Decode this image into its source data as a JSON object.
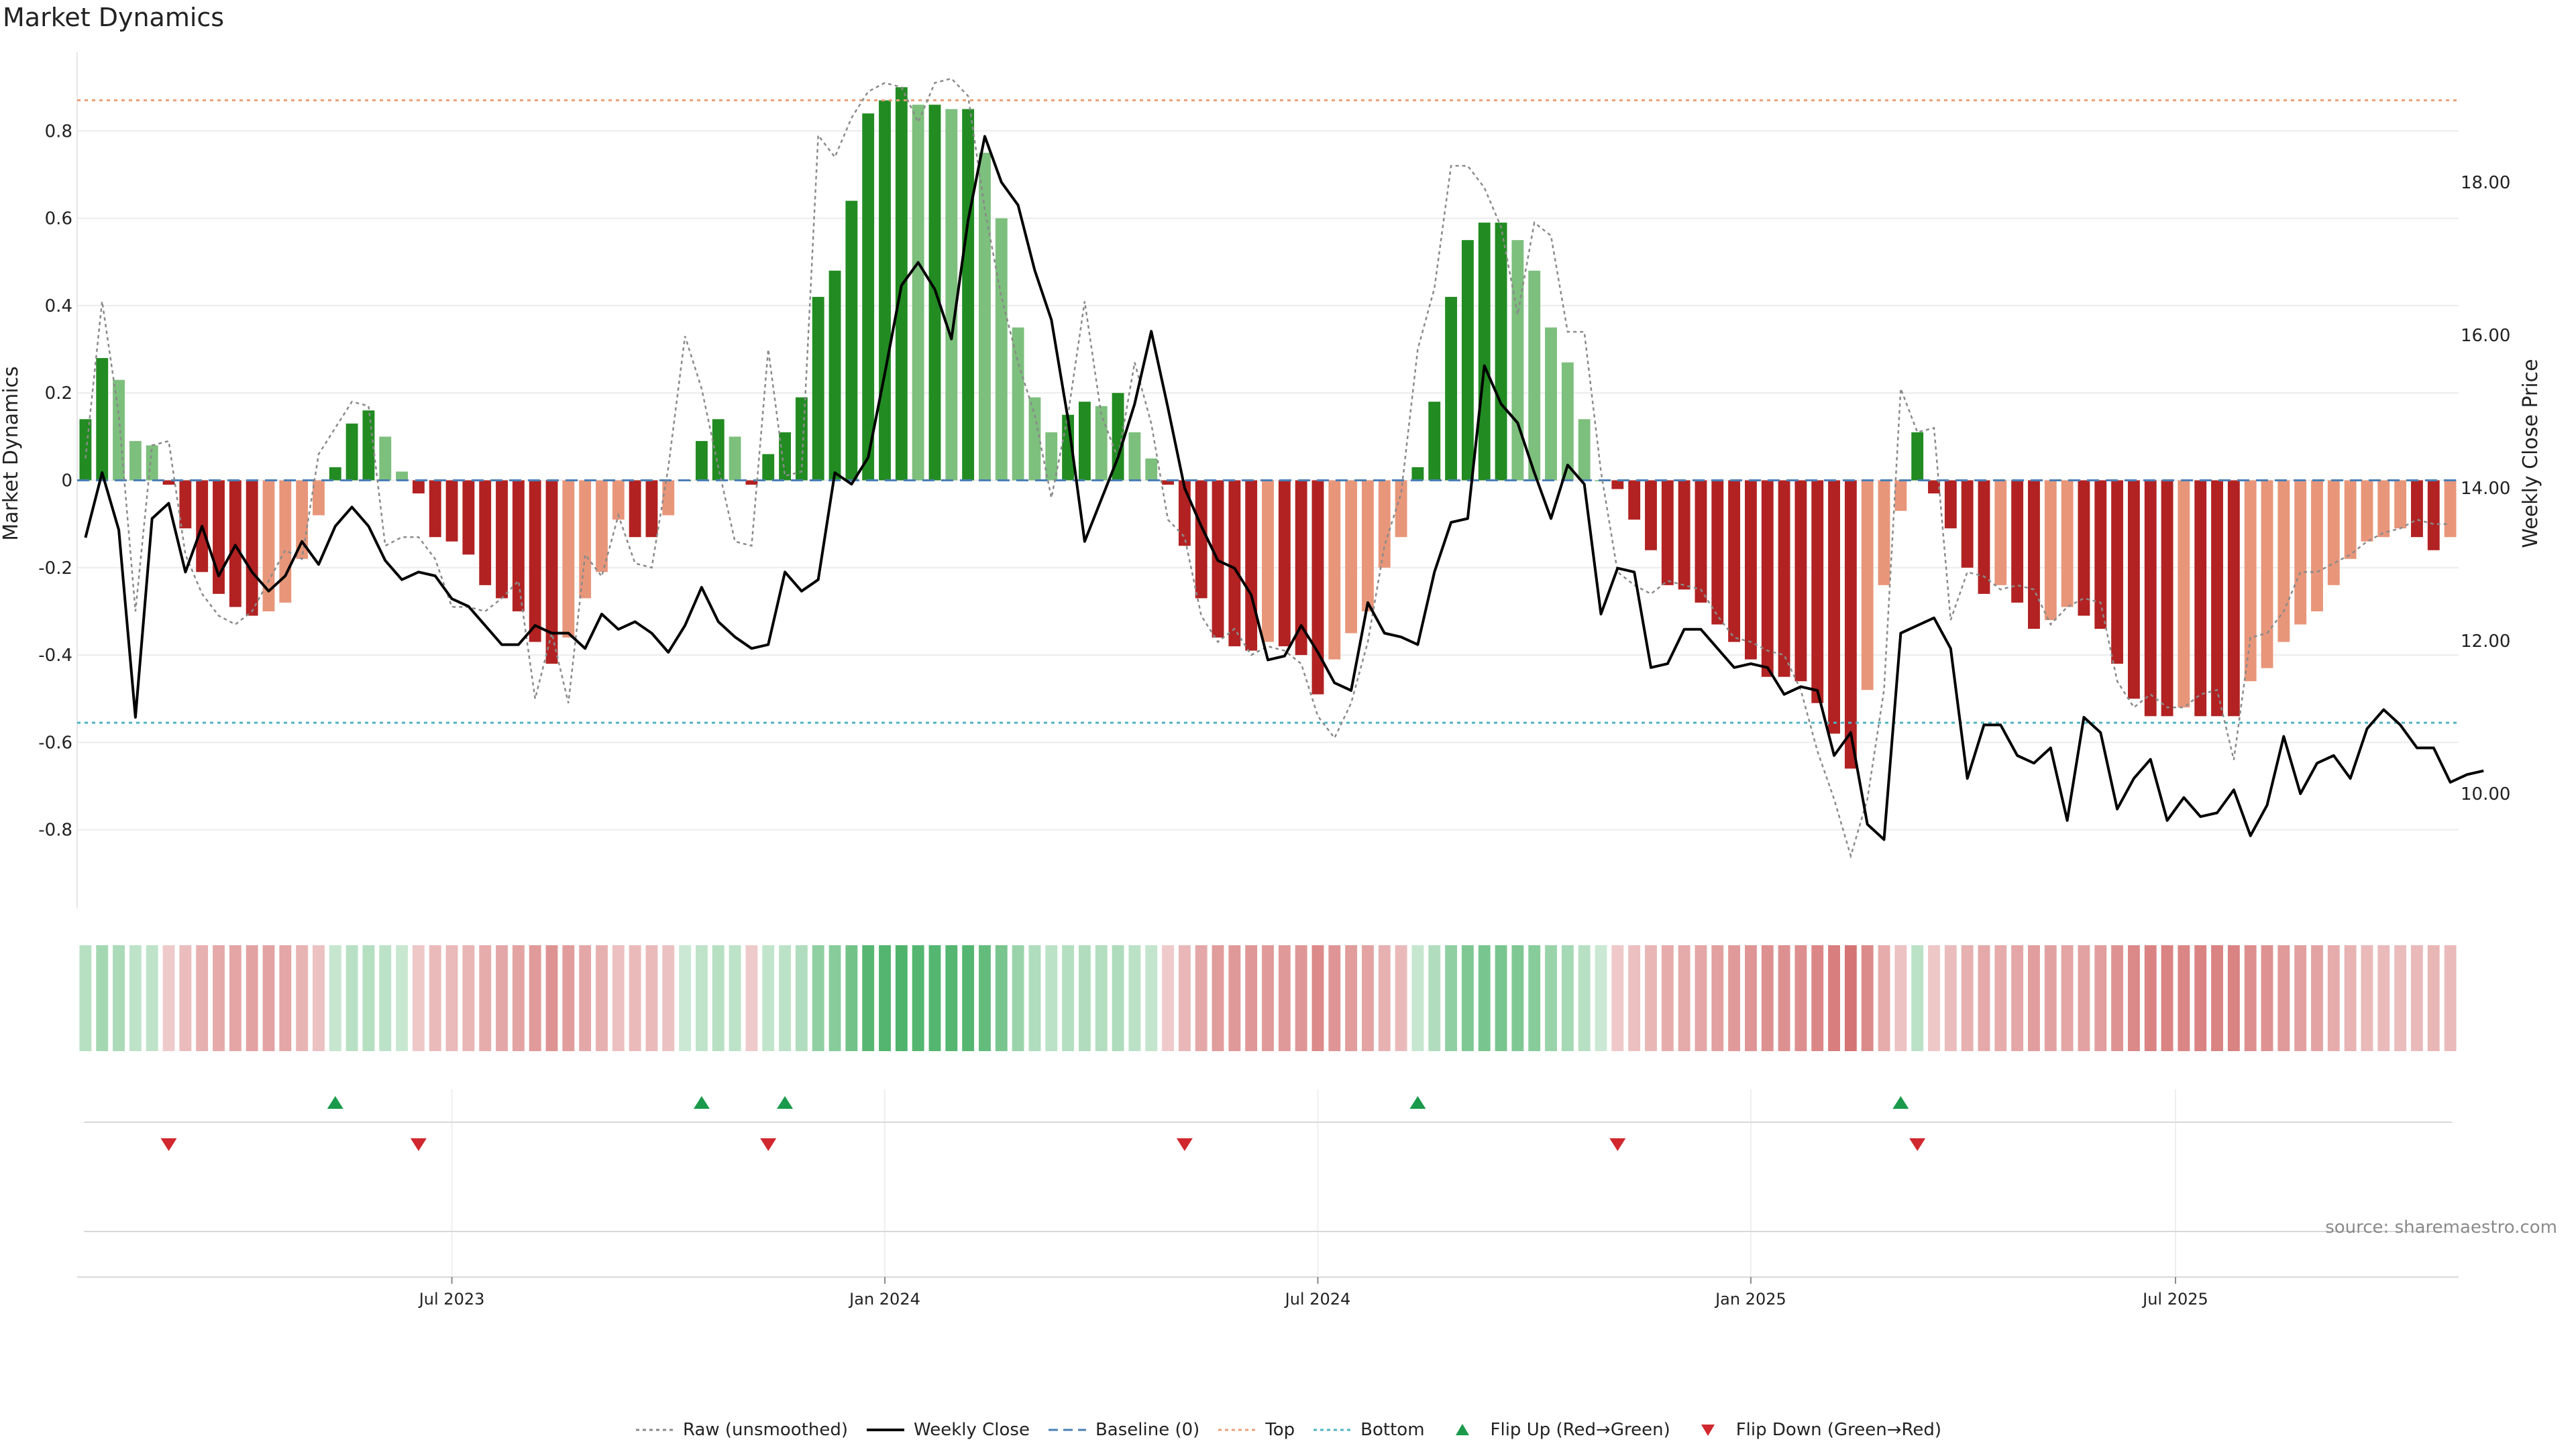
{
  "title": "Market Dynamics",
  "source": "source: sharemaestro.com",
  "legend": [
    {
      "key": "raw",
      "label": "Raw (unsmoothed)",
      "color": "#888888",
      "style": "dotted-line"
    },
    {
      "key": "close",
      "label": "Weekly Close",
      "color": "#000000",
      "style": "solid-line"
    },
    {
      "key": "baseline",
      "label": "Baseline (0)",
      "color": "#4a7fb5",
      "style": "dashed-line"
    },
    {
      "key": "top",
      "label": "Top",
      "color": "#e8a07a",
      "style": "dotted-line"
    },
    {
      "key": "bottom",
      "label": "Bottom",
      "color": "#4fb3c4",
      "style": "dotted-line"
    },
    {
      "key": "flip_up",
      "label": "Flip Up (Red→Green)",
      "color": "#1a9a4a",
      "style": "triangle-up"
    },
    {
      "key": "flip_down",
      "label": "Flip Down (Green→Red)",
      "color": "#d0282e",
      "style": "triangle-down"
    }
  ],
  "chart_data": {
    "type": "bar",
    "ylabel": "Market Dynamics",
    "ylabel_right": "Weekly Close Price",
    "ylim": [
      -0.98,
      0.98
    ],
    "ylim_right": [
      8.5,
      19.7
    ],
    "yticks": [
      -0.8,
      -0.6,
      -0.4,
      -0.2,
      0,
      0.2,
      0.4,
      0.6,
      0.8
    ],
    "yticks_right": [
      "10.00",
      "12.00",
      "14.00",
      "16.00",
      "18.00"
    ],
    "x_tick_labels": [
      "Jul 2023",
      "Jan 2024",
      "Jul 2024",
      "Jan 2025",
      "Jul 2025"
    ],
    "x_tick_index": [
      22,
      48,
      74,
      100,
      125.5
    ],
    "x_range": [
      -0.5,
      142.5
    ],
    "top_level": 0.87,
    "bottom_level": -0.555,
    "baseline": 0,
    "grid": true,
    "legend_position": "bottom",
    "bar_colors": {
      "strong_up": "#228b22",
      "weak_up": "#7dbf7d",
      "strong_down": "#b22222",
      "weak_down": "#e8967a"
    },
    "heat_colors": {
      "up": [
        34,
        160,
        70
      ],
      "down": [
        190,
        40,
        40
      ]
    },
    "series": [
      {
        "name": "Market Dynamics",
        "values": [
          0.14,
          0.28,
          0.23,
          0.09,
          0.08,
          -0.01,
          -0.11,
          -0.21,
          -0.26,
          -0.29,
          -0.31,
          -0.3,
          -0.28,
          -0.18,
          -0.08,
          0.03,
          0.13,
          0.16,
          0.1,
          0.02,
          -0.03,
          -0.13,
          -0.14,
          -0.17,
          -0.24,
          -0.27,
          -0.3,
          -0.37,
          -0.42,
          -0.36,
          -0.27,
          -0.21,
          -0.09,
          -0.13,
          -0.13,
          -0.08,
          0.0,
          0.09,
          0.14,
          0.1,
          -0.01,
          0.06,
          0.11,
          0.19,
          0.42,
          0.48,
          0.64,
          0.84,
          0.87,
          0.9,
          0.86,
          0.86,
          0.85,
          0.85,
          0.75,
          0.6,
          0.35,
          0.19,
          0.11,
          0.15,
          0.18,
          0.17,
          0.2,
          0.11,
          0.05,
          -0.01,
          -0.15,
          -0.27,
          -0.36,
          -0.38,
          -0.39,
          -0.37,
          -0.38,
          -0.4,
          -0.49,
          -0.41,
          -0.35,
          -0.3,
          -0.2,
          -0.13,
          0.03,
          0.18,
          0.42,
          0.55,
          0.59,
          0.59,
          0.55,
          0.48,
          0.35,
          0.27,
          0.14,
          0.0,
          -0.02,
          -0.09,
          -0.16,
          -0.24,
          -0.25,
          -0.28,
          -0.33,
          -0.37,
          -0.41,
          -0.45,
          -0.45,
          -0.46,
          -0.51,
          -0.58,
          -0.66,
          -0.48,
          -0.24,
          -0.07,
          0.11,
          -0.03,
          -0.11,
          -0.2,
          -0.26,
          -0.24,
          -0.28,
          -0.34,
          -0.32,
          -0.29,
          -0.31,
          -0.34,
          -0.42,
          -0.5,
          -0.54,
          -0.54,
          -0.52,
          -0.54,
          -0.54,
          -0.54,
          -0.46,
          -0.43,
          -0.37,
          -0.33,
          -0.3,
          -0.24,
          -0.18,
          -0.14,
          -0.13,
          -0.11,
          -0.13,
          -0.16,
          -0.13
        ]
      },
      {
        "name": "Raw (unsmoothed)",
        "values": [
          0.05,
          0.41,
          0.15,
          -0.3,
          0.08,
          0.09,
          -0.17,
          -0.26,
          -0.31,
          -0.33,
          -0.3,
          -0.23,
          -0.16,
          -0.18,
          0.06,
          0.12,
          0.18,
          0.17,
          -0.15,
          -0.13,
          -0.13,
          -0.18,
          -0.29,
          -0.29,
          -0.3,
          -0.27,
          -0.23,
          -0.5,
          -0.35,
          -0.51,
          -0.17,
          -0.22,
          -0.08,
          -0.19,
          -0.2,
          0.03,
          0.33,
          0.21,
          0.03,
          -0.14,
          -0.15,
          0.3,
          0.01,
          0.02,
          0.79,
          0.74,
          0.83,
          0.89,
          0.91,
          0.9,
          0.82,
          0.91,
          0.92,
          0.88,
          0.62,
          0.42,
          0.27,
          0.15,
          -0.04,
          0.15,
          0.41,
          0.15,
          0.05,
          0.27,
          0.13,
          -0.09,
          -0.13,
          -0.31,
          -0.37,
          -0.34,
          -0.4,
          -0.38,
          -0.39,
          -0.42,
          -0.54,
          -0.59,
          -0.51,
          -0.37,
          -0.15,
          -0.03,
          0.3,
          0.44,
          0.72,
          0.72,
          0.67,
          0.58,
          0.38,
          0.59,
          0.56,
          0.34,
          0.34,
          0.02,
          -0.21,
          -0.24,
          -0.26,
          -0.23,
          -0.24,
          -0.25,
          -0.31,
          -0.36,
          -0.37,
          -0.39,
          -0.4,
          -0.48,
          -0.62,
          -0.73,
          -0.86,
          -0.73,
          -0.48,
          0.21,
          0.11,
          0.12,
          -0.32,
          -0.21,
          -0.22,
          -0.25,
          -0.24,
          -0.25,
          -0.33,
          -0.29,
          -0.27,
          -0.28,
          -0.46,
          -0.52,
          -0.49,
          -0.52,
          -0.52,
          -0.49,
          -0.48,
          -0.64,
          -0.36,
          -0.35,
          -0.3,
          -0.21,
          -0.21,
          -0.19,
          -0.17,
          -0.14,
          -0.12,
          -0.11,
          -0.09,
          -0.1,
          -0.1
        ]
      },
      {
        "name": "Weekly Close",
        "values": [
          13.35,
          14.2,
          13.45,
          11.0,
          13.6,
          13.8,
          12.9,
          13.5,
          12.85,
          13.25,
          12.9,
          12.65,
          12.85,
          13.3,
          13.0,
          13.5,
          13.75,
          13.5,
          13.05,
          12.8,
          12.9,
          12.85,
          12.55,
          12.45,
          12.2,
          11.95,
          11.95,
          12.2,
          12.1,
          12.1,
          11.9,
          12.35,
          12.15,
          12.25,
          12.1,
          11.85,
          12.2,
          12.7,
          12.25,
          12.05,
          11.9,
          11.95,
          12.9,
          12.65,
          12.8,
          14.2,
          14.05,
          14.4,
          15.5,
          16.65,
          16.95,
          16.6,
          15.95,
          17.5,
          18.6,
          18.0,
          17.7,
          16.85,
          16.2,
          14.9,
          13.3,
          13.85,
          14.4,
          15.1,
          16.05,
          15.05,
          14.0,
          13.5,
          13.05,
          12.95,
          12.6,
          11.75,
          11.8,
          12.2,
          11.85,
          11.45,
          11.35,
          12.5,
          12.1,
          12.05,
          11.95,
          12.9,
          13.55,
          13.6,
          15.6,
          15.1,
          14.85,
          14.2,
          13.6,
          14.3,
          14.05,
          12.35,
          12.95,
          12.9,
          11.65,
          11.7,
          12.15,
          12.15,
          11.9,
          11.65,
          11.7,
          11.65,
          11.3,
          11.4,
          11.35,
          10.5,
          10.8,
          9.6,
          9.4,
          12.1,
          12.2,
          12.3,
          11.9,
          10.2,
          10.9,
          10.9,
          10.5,
          10.4,
          10.6,
          9.65,
          11.0,
          10.8,
          9.8,
          10.2,
          10.45,
          9.65,
          9.95,
          9.7,
          9.75,
          10.05,
          9.45,
          9.85,
          10.75,
          10.0,
          10.4,
          10.5,
          10.2,
          10.85,
          11.1,
          10.9,
          10.6,
          10.6,
          10.15,
          10.25,
          10.3
        ]
      }
    ],
    "flip_up_index": [
      15,
      37,
      42,
      80,
      109
    ],
    "flip_down_index": [
      5,
      20,
      41,
      66,
      92,
      110
    ]
  }
}
